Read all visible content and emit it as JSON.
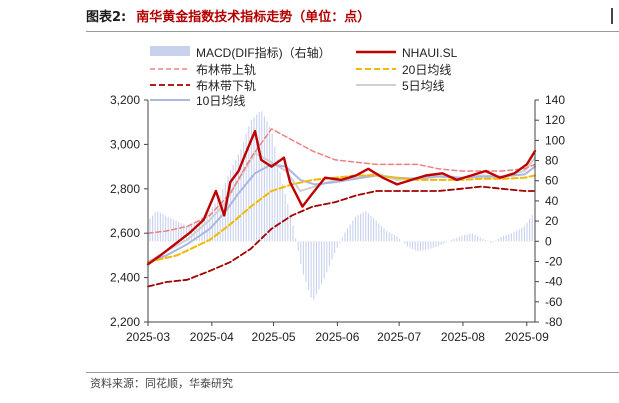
{
  "header": {
    "figure_label": "图表2:",
    "figure_title": "南华黄金指数技术指标走势（单位：点）"
  },
  "footer": {
    "source": "资料来源：同花顺，华泰研究"
  },
  "colors": {
    "nhauisl": "#c00000",
    "boll_upper": "#ee8080",
    "boll_lower": "#a00000",
    "ma20": "#f5b800",
    "ma5": "#d0d0d0",
    "ma10": "#a9b8e0",
    "macd": "#c8d2ee"
  },
  "chart_data": {
    "type": "line",
    "x_tick_labels": [
      "2025-03",
      "2025-04",
      "2025-05",
      "2025-06",
      "2025-07",
      "2025-08",
      "2025-09"
    ],
    "x_month_starts": [
      "2025-03-01",
      "2025-04-01",
      "2025-05-01",
      "2025-06-01",
      "2025-07-01",
      "2025-08-01",
      "2025-09-01"
    ],
    "x_range": [
      "2025-03-01",
      "2025-09-05"
    ],
    "left_axis": {
      "min": 2200,
      "max": 3200,
      "ticks": [
        2200,
        2400,
        2600,
        2800,
        3000,
        3200
      ],
      "tick_labels": [
        "2,200",
        "2,400",
        "2,600",
        "2,800",
        "3,000",
        "3,200"
      ]
    },
    "right_axis": {
      "min": -80,
      "max": 140,
      "ticks": [
        -80,
        -60,
        -40,
        -20,
        0,
        20,
        40,
        60,
        80,
        100,
        120,
        140
      ],
      "tick_labels": [
        "-80",
        "-60",
        "-40",
        "-20",
        "0",
        "20",
        "40",
        "60",
        "80",
        "100",
        "120",
        "140"
      ]
    },
    "legend": [
      {
        "key": "macd",
        "label": "MACD(DIF指标)（右轴）"
      },
      {
        "key": "nhauisl",
        "label": "NHAUI.SL"
      },
      {
        "key": "boll_upper",
        "label": "布林带上轨"
      },
      {
        "key": "ma20",
        "label": "20日均线"
      },
      {
        "key": "boll_lower",
        "label": "布林带下轨"
      },
      {
        "key": "ma5",
        "label": "5日均线"
      },
      {
        "key": "ma10",
        "label": "10日均线"
      }
    ],
    "series": [
      {
        "key": "nhauisl",
        "name": "NHAUI.SL",
        "axis": "left",
        "dates": [
          "2025-03-01",
          "2025-03-07",
          "2025-03-14",
          "2025-03-21",
          "2025-03-28",
          "2025-04-03",
          "2025-04-07",
          "2025-04-10",
          "2025-04-14",
          "2025-04-17",
          "2025-04-22",
          "2025-04-25",
          "2025-04-30",
          "2025-05-06",
          "2025-05-09",
          "2025-05-15",
          "2025-05-20",
          "2025-05-26",
          "2025-06-03",
          "2025-06-10",
          "2025-06-16",
          "2025-06-23",
          "2025-06-30",
          "2025-07-07",
          "2025-07-14",
          "2025-07-22",
          "2025-07-29",
          "2025-08-05",
          "2025-08-12",
          "2025-08-19",
          "2025-08-26",
          "2025-09-01",
          "2025-09-05"
        ],
        "values": [
          2460,
          2500,
          2550,
          2600,
          2660,
          2790,
          2680,
          2830,
          2880,
          2950,
          3060,
          2930,
          2900,
          2940,
          2830,
          2720,
          2780,
          2850,
          2840,
          2860,
          2890,
          2850,
          2820,
          2840,
          2860,
          2870,
          2840,
          2860,
          2880,
          2850,
          2870,
          2910,
          2970
        ]
      },
      {
        "key": "boll_upper",
        "name": "布林带上轨",
        "axis": "left",
        "dates": [
          "2025-03-01",
          "2025-03-10",
          "2025-03-20",
          "2025-03-31",
          "2025-04-10",
          "2025-04-20",
          "2025-04-30",
          "2025-05-10",
          "2025-05-20",
          "2025-05-31",
          "2025-06-10",
          "2025-06-20",
          "2025-06-30",
          "2025-07-10",
          "2025-07-20",
          "2025-07-31",
          "2025-08-10",
          "2025-08-20",
          "2025-08-31",
          "2025-09-05"
        ],
        "values": [
          2600,
          2610,
          2630,
          2680,
          2780,
          2940,
          3070,
          3020,
          2970,
          2930,
          2920,
          2910,
          2910,
          2910,
          2890,
          2880,
          2880,
          2880,
          2890,
          2910
        ]
      },
      {
        "key": "ma20",
        "name": "20日均线",
        "axis": "left",
        "dates": [
          "2025-03-01",
          "2025-03-15",
          "2025-03-31",
          "2025-04-10",
          "2025-04-20",
          "2025-04-30",
          "2025-05-10",
          "2025-05-20",
          "2025-05-31",
          "2025-06-10",
          "2025-06-20",
          "2025-06-30",
          "2025-07-10",
          "2025-07-20",
          "2025-07-31",
          "2025-08-10",
          "2025-08-20",
          "2025-08-31",
          "2025-09-05"
        ],
        "values": [
          2470,
          2500,
          2570,
          2640,
          2720,
          2790,
          2820,
          2840,
          2850,
          2860,
          2860,
          2850,
          2840,
          2840,
          2840,
          2845,
          2845,
          2850,
          2860
        ]
      },
      {
        "key": "boll_lower",
        "name": "布林带下轨",
        "axis": "left",
        "dates": [
          "2025-03-01",
          "2025-03-10",
          "2025-03-20",
          "2025-03-31",
          "2025-04-10",
          "2025-04-20",
          "2025-04-30",
          "2025-05-10",
          "2025-05-20",
          "2025-05-31",
          "2025-06-10",
          "2025-06-20",
          "2025-06-30",
          "2025-07-10",
          "2025-07-20",
          "2025-07-31",
          "2025-08-10",
          "2025-08-20",
          "2025-08-31",
          "2025-09-05"
        ],
        "values": [
          2360,
          2380,
          2390,
          2430,
          2470,
          2530,
          2620,
          2680,
          2720,
          2740,
          2770,
          2790,
          2790,
          2790,
          2790,
          2800,
          2810,
          2800,
          2790,
          2790
        ]
      },
      {
        "key": "ma5",
        "name": "5日均线",
        "axis": "left",
        "dates": [
          "2025-03-01",
          "2025-03-10",
          "2025-03-20",
          "2025-03-31",
          "2025-04-07",
          "2025-04-14",
          "2025-04-22",
          "2025-04-30",
          "2025-05-07",
          "2025-05-14",
          "2025-05-21",
          "2025-05-31",
          "2025-06-10",
          "2025-06-20",
          "2025-06-30",
          "2025-07-10",
          "2025-07-20",
          "2025-07-31",
          "2025-08-10",
          "2025-08-20",
          "2025-08-31",
          "2025-09-05"
        ],
        "values": [
          2470,
          2520,
          2570,
          2660,
          2730,
          2840,
          2960,
          2920,
          2880,
          2790,
          2810,
          2840,
          2850,
          2870,
          2840,
          2850,
          2860,
          2850,
          2860,
          2855,
          2880,
          2940
        ]
      },
      {
        "key": "ma10",
        "name": "10日均线",
        "axis": "left",
        "dates": [
          "2025-03-01",
          "2025-03-10",
          "2025-03-20",
          "2025-03-31",
          "2025-04-07",
          "2025-04-14",
          "2025-04-22",
          "2025-04-30",
          "2025-05-07",
          "2025-05-14",
          "2025-05-21",
          "2025-05-31",
          "2025-06-10",
          "2025-06-20",
          "2025-06-30",
          "2025-07-10",
          "2025-07-20",
          "2025-07-31",
          "2025-08-10",
          "2025-08-20",
          "2025-08-31",
          "2025-09-05"
        ],
        "values": [
          2470,
          2500,
          2550,
          2620,
          2690,
          2780,
          2870,
          2910,
          2900,
          2840,
          2820,
          2830,
          2845,
          2860,
          2850,
          2845,
          2855,
          2850,
          2855,
          2855,
          2865,
          2900
        ]
      }
    ],
    "macd": {
      "name": "MACD(DIF指标)（右轴）",
      "axis": "right",
      "dates": [
        "2025-03-01",
        "2025-03-05",
        "2025-03-10",
        "2025-03-15",
        "2025-03-20",
        "2025-03-25",
        "2025-03-31",
        "2025-04-05",
        "2025-04-10",
        "2025-04-15",
        "2025-04-20",
        "2025-04-25",
        "2025-04-30",
        "2025-05-05",
        "2025-05-10",
        "2025-05-15",
        "2025-05-20",
        "2025-05-25",
        "2025-05-31",
        "2025-06-05",
        "2025-06-10",
        "2025-06-15",
        "2025-06-20",
        "2025-06-25",
        "2025-06-30",
        "2025-07-05",
        "2025-07-10",
        "2025-07-15",
        "2025-07-20",
        "2025-07-25",
        "2025-07-31",
        "2025-08-05",
        "2025-08-10",
        "2025-08-15",
        "2025-08-20",
        "2025-08-25",
        "2025-08-31",
        "2025-09-05"
      ],
      "values": [
        20,
        30,
        25,
        20,
        15,
        20,
        30,
        45,
        70,
        90,
        120,
        130,
        110,
        60,
        20,
        -30,
        -60,
        -40,
        -10,
        10,
        25,
        30,
        20,
        10,
        5,
        -5,
        -10,
        -8,
        -5,
        0,
        5,
        8,
        3,
        -2,
        5,
        8,
        15,
        30
      ]
    }
  }
}
